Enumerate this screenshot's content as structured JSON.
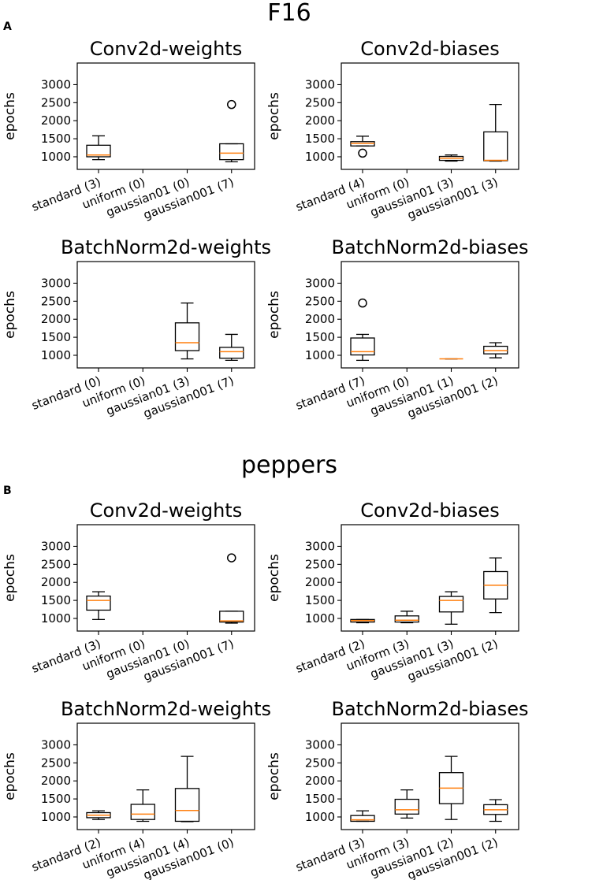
{
  "sections": [
    {
      "title": "F16",
      "label": "A"
    },
    {
      "title": "peppers",
      "label": "B"
    }
  ],
  "chart_data": [
    {
      "type": "box",
      "section": "F16",
      "title": "Conv2d-weights",
      "ylabel": "epochs",
      "yticks": [
        1000,
        1500,
        2000,
        2500,
        3000
      ],
      "ylim": [
        650,
        3600
      ],
      "categories": [
        "standard (3)",
        "uniform (0)",
        "gaussian01 (0)",
        "gaussian001 (7)"
      ],
      "boxes": [
        {
          "q1": 1000,
          "median": 1050,
          "q3": 1320,
          "whislo": 920,
          "whishi": 1580,
          "fliers": []
        },
        null,
        null,
        {
          "q1": 920,
          "median": 1100,
          "q3": 1360,
          "whislo": 860,
          "whishi": 1360,
          "fliers": [
            2450
          ]
        }
      ]
    },
    {
      "type": "box",
      "section": "F16",
      "title": "Conv2d-biases",
      "ylabel": "epochs",
      "yticks": [
        1000,
        1500,
        2000,
        2500,
        3000
      ],
      "ylim": [
        650,
        3600
      ],
      "categories": [
        "standard (4)",
        "uniform (0)",
        "gaussian01 (3)",
        "gaussian001 (3)"
      ],
      "boxes": [
        {
          "q1": 1300,
          "median": 1370,
          "q3": 1420,
          "whislo": 1300,
          "whishi": 1570,
          "fliers": [
            1100
          ]
        },
        null,
        {
          "q1": 900,
          "median": 960,
          "q3": 1010,
          "whislo": 880,
          "whishi": 1050,
          "fliers": []
        },
        {
          "q1": 890,
          "median": 900,
          "q3": 1690,
          "whislo": 880,
          "whishi": 2450,
          "fliers": []
        }
      ]
    },
    {
      "type": "box",
      "section": "F16",
      "title": "BatchNorm2d-weights",
      "ylabel": "epochs",
      "yticks": [
        1000,
        1500,
        2000,
        2500,
        3000
      ],
      "ylim": [
        650,
        3600
      ],
      "categories": [
        "standard (0)",
        "uniform (0)",
        "gaussian01 (3)",
        "gaussian001 (7)"
      ],
      "boxes": [
        null,
        null,
        {
          "q1": 1130,
          "median": 1350,
          "q3": 1900,
          "whislo": 900,
          "whishi": 2450,
          "fliers": []
        },
        {
          "q1": 920,
          "median": 1100,
          "q3": 1220,
          "whislo": 860,
          "whishi": 1580,
          "fliers": []
        }
      ]
    },
    {
      "type": "box",
      "section": "F16",
      "title": "BatchNorm2d-biases",
      "ylabel": "epochs",
      "yticks": [
        1000,
        1500,
        2000,
        2500,
        3000
      ],
      "ylim": [
        650,
        3600
      ],
      "categories": [
        "standard (7)",
        "uniform (0)",
        "gaussian01 (1)",
        "gaussian001 (2)"
      ],
      "boxes": [
        {
          "q1": 1010,
          "median": 1100,
          "q3": 1480,
          "whislo": 860,
          "whishi": 1580,
          "fliers": [
            2450
          ]
        },
        null,
        {
          "q1": 900,
          "median": 900,
          "q3": 900,
          "whislo": 900,
          "whishi": 900,
          "fliers": []
        },
        {
          "q1": 1040,
          "median": 1130,
          "q3": 1250,
          "whislo": 930,
          "whishi": 1350,
          "fliers": []
        }
      ]
    },
    {
      "type": "box",
      "section": "peppers",
      "title": "Conv2d-weights",
      "ylabel": "epochs",
      "yticks": [
        1000,
        1500,
        2000,
        2500,
        3000
      ],
      "ylim": [
        650,
        3600
      ],
      "categories": [
        "standard (3)",
        "uniform (0)",
        "gaussian01 (0)",
        "gaussian001 (7)"
      ],
      "boxes": [
        {
          "q1": 1230,
          "median": 1500,
          "q3": 1620,
          "whislo": 970,
          "whishi": 1740,
          "fliers": []
        },
        null,
        null,
        {
          "q1": 900,
          "median": 930,
          "q3": 1200,
          "whislo": 870,
          "whishi": 1200,
          "fliers": [
            2680
          ]
        }
      ]
    },
    {
      "type": "box",
      "section": "peppers",
      "title": "Conv2d-biases",
      "ylabel": "epochs",
      "yticks": [
        1000,
        1500,
        2000,
        2500,
        3000
      ],
      "ylim": [
        650,
        3600
      ],
      "categories": [
        "standard (2)",
        "uniform (3)",
        "gaussian01 (3)",
        "gaussian001 (2)"
      ],
      "boxes": [
        {
          "q1": 900,
          "median": 940,
          "q3": 970,
          "whislo": 880,
          "whishi": 970,
          "fliers": []
        },
        {
          "q1": 900,
          "median": 950,
          "q3": 1070,
          "whislo": 880,
          "whishi": 1200,
          "fliers": []
        },
        {
          "q1": 1180,
          "median": 1500,
          "q3": 1610,
          "whislo": 840,
          "whishi": 1740,
          "fliers": []
        },
        {
          "q1": 1540,
          "median": 1920,
          "q3": 2300,
          "whislo": 1160,
          "whishi": 2680,
          "fliers": []
        }
      ]
    },
    {
      "type": "box",
      "section": "peppers",
      "title": "BatchNorm2d-weights",
      "ylabel": "epochs",
      "yticks": [
        1000,
        1500,
        2000,
        2500,
        3000
      ],
      "ylim": [
        650,
        3600
      ],
      "categories": [
        "standard (2)",
        "uniform (4)",
        "gaussian01 (4)",
        "gaussian001 (0)"
      ],
      "boxes": [
        {
          "q1": 980,
          "median": 1050,
          "q3": 1120,
          "whislo": 930,
          "whishi": 1170,
          "fliers": []
        },
        {
          "q1": 930,
          "median": 1080,
          "q3": 1350,
          "whislo": 880,
          "whishi": 1750,
          "fliers": []
        },
        {
          "q1": 880,
          "median": 1180,
          "q3": 1790,
          "whislo": 870,
          "whishi": 2680,
          "fliers": []
        },
        null
      ]
    },
    {
      "type": "box",
      "section": "peppers",
      "title": "BatchNorm2d-biases",
      "ylabel": "epochs",
      "yticks": [
        1000,
        1500,
        2000,
        2500,
        3000
      ],
      "ylim": [
        650,
        3600
      ],
      "categories": [
        "standard (3)",
        "uniform (3)",
        "gaussian01 (2)",
        "gaussian001 (2)"
      ],
      "boxes": [
        {
          "q1": 880,
          "median": 920,
          "q3": 1040,
          "whislo": 880,
          "whishi": 1170,
          "fliers": []
        },
        {
          "q1": 1080,
          "median": 1200,
          "q3": 1490,
          "whislo": 970,
          "whishi": 1750,
          "fliers": []
        },
        {
          "q1": 1370,
          "median": 1800,
          "q3": 2230,
          "whislo": 930,
          "whishi": 2680,
          "fliers": []
        },
        {
          "q1": 1070,
          "median": 1200,
          "q3": 1340,
          "whislo": 880,
          "whishi": 1480,
          "fliers": []
        }
      ]
    }
  ]
}
